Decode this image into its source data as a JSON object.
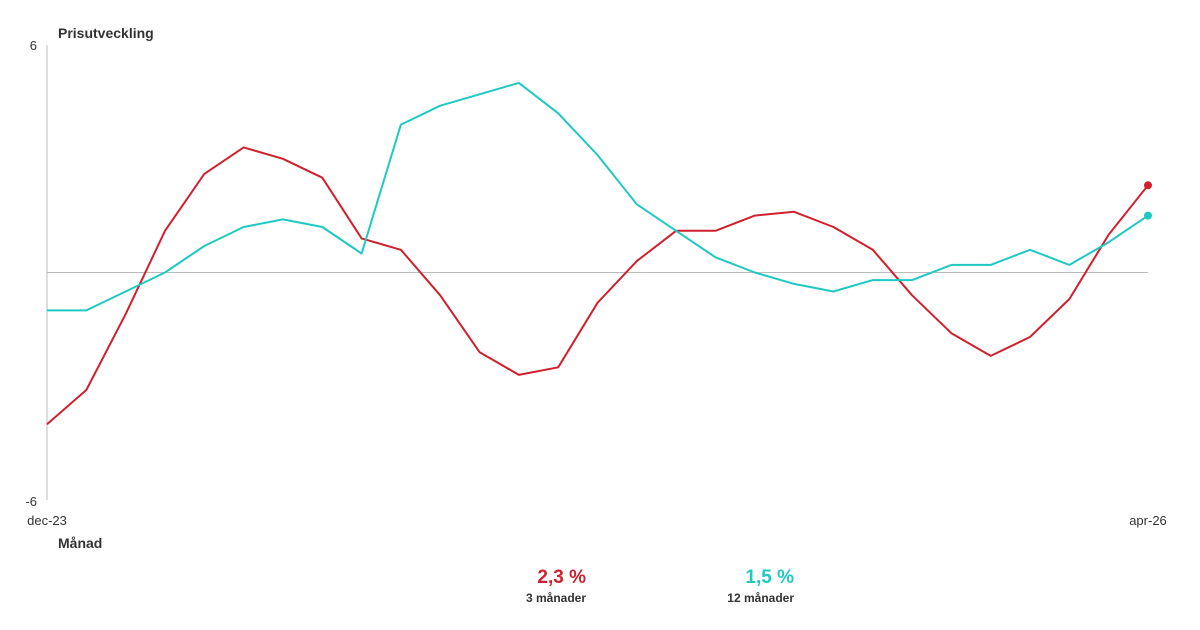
{
  "chart_data": {
    "type": "line",
    "ylabel": "Prisutveckling",
    "xlabel": "Månad",
    "ylim": [
      -6,
      6
    ],
    "y_ticks": [
      "6",
      "-6"
    ],
    "x_start_label": "dec-23",
    "x_end_label": "apr-26",
    "x": [
      "dec-23",
      "jan-24",
      "feb-24",
      "mar-24",
      "apr-24",
      "maj-24",
      "jun-24",
      "jul-24",
      "aug-24",
      "sep-24",
      "okt-24",
      "nov-24",
      "dec-24",
      "jan-25",
      "feb-25",
      "mar-25",
      "apr-25",
      "maj-25",
      "jun-25",
      "jul-25",
      "aug-25",
      "sep-25",
      "okt-25",
      "nov-25",
      "dec-25",
      "jan-26",
      "feb-26",
      "mar-26",
      "apr-26"
    ],
    "zero_line": true,
    "grid": false,
    "series": [
      {
        "name": "3 månader",
        "color": "#d0202e",
        "values": [
          -4.0,
          -3.1,
          -1.1,
          1.1,
          2.6,
          3.3,
          3.0,
          2.5,
          0.9,
          0.6,
          -0.6,
          -2.1,
          -2.7,
          -2.5,
          -0.8,
          0.3,
          1.1,
          1.1,
          1.5,
          1.6,
          1.2,
          0.6,
          -0.6,
          -1.6,
          -2.2,
          -1.7,
          -0.7,
          1.0,
          2.3
        ],
        "end_marker": true
      },
      {
        "name": "12 månader",
        "color": "#1ec9c2",
        "values": [
          -1.0,
          -1.0,
          -0.5,
          0.0,
          0.7,
          1.2,
          1.4,
          1.2,
          0.5,
          3.9,
          4.4,
          4.7,
          5.0,
          4.2,
          3.1,
          1.8,
          1.1,
          0.4,
          0.0,
          -0.3,
          -0.5,
          -0.2,
          -0.2,
          0.2,
          0.2,
          0.6,
          0.2,
          0.8,
          1.5
        ],
        "end_marker": true
      }
    ]
  },
  "legend": [
    {
      "value": "2,3 %",
      "label": "3 månader"
    },
    {
      "value": "1,5 %",
      "label": "12 månader"
    }
  ]
}
